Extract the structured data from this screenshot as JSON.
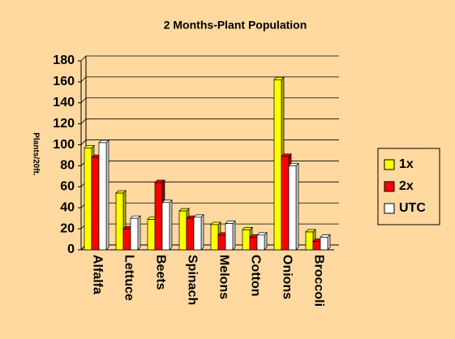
{
  "chart_data": {
    "type": "bar",
    "title": "2 Months-Plant Population",
    "y_label": "Plants/20ft.",
    "categories": [
      "Alfalfa",
      "Lettuce",
      "Beets",
      "Spinach",
      "Melons",
      "Cotton",
      "Onions",
      "Broccoli"
    ],
    "series": [
      {
        "name": "1x",
        "color": "#ffff00",
        "values": [
          97,
          54,
          29,
          37,
          24,
          19,
          162,
          17
        ]
      },
      {
        "name": "2x",
        "color": "#ff0000",
        "values": [
          88,
          20,
          64,
          30,
          14,
          12,
          89,
          8
        ]
      },
      {
        "name": "UTC",
        "color": "#ffffff",
        "values": [
          102,
          30,
          45,
          31,
          25,
          14,
          80,
          12
        ]
      }
    ],
    "ylim": [
      0,
      180
    ],
    "yticks": [
      0,
      20,
      40,
      60,
      80,
      100,
      120,
      140,
      160,
      180
    ],
    "grid": true,
    "legend": "right"
  }
}
